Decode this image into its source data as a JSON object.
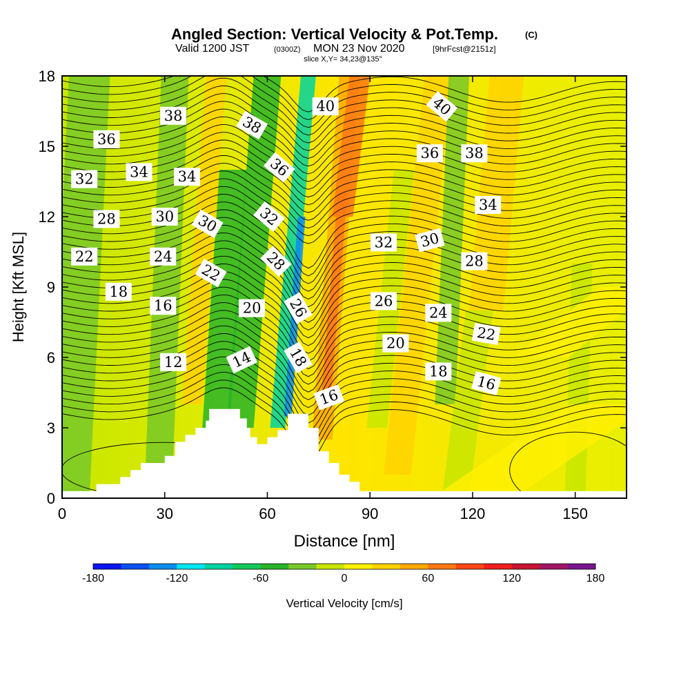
{
  "chart_data": {
    "type": "heatmap",
    "title": "Angled Section: Vertical Velocity & Pot.Temp.",
    "title_mark": "(C)",
    "subtitle": {
      "prefix": "Valid 1200 JST",
      "utc": "(0300Z)",
      "date": "MON 23 Nov 2020",
      "forecast": "[9hrFcst@2151z]"
    },
    "slice_note": "slice X,Y= 34,23@135°",
    "xlabel": "Distance [nm]",
    "ylabel": "Height [Kft MSL]",
    "xlim": [
      0,
      165
    ],
    "ylim": [
      0,
      18
    ],
    "x_ticks": [
      {
        "value": 0,
        "label": "0"
      },
      {
        "value": 30,
        "label": "30"
      },
      {
        "value": 60,
        "label": "60"
      },
      {
        "value": 90,
        "label": "90"
      },
      {
        "value": 120,
        "label": "120"
      },
      {
        "value": 150,
        "label": "150"
      }
    ],
    "y_ticks": [
      {
        "value": 0,
        "label": "0"
      },
      {
        "value": 3,
        "label": "3"
      },
      {
        "value": 6,
        "label": "6"
      },
      {
        "value": 9,
        "label": "9"
      },
      {
        "value": 12,
        "label": "12"
      },
      {
        "value": 15,
        "label": "15"
      },
      {
        "value": 18,
        "label": "18"
      }
    ],
    "colorbar": {
      "label": "Vertical Velocity [cm/s]",
      "range": [
        -180,
        180
      ],
      "step": 20,
      "colors": [
        "#0a14f0",
        "#0a50f0",
        "#0a8cf0",
        "#00e6f0",
        "#00d2a0",
        "#14c85a",
        "#28b428",
        "#78c828",
        "#c8e600",
        "#fff000",
        "#ffd200",
        "#ffaa00",
        "#ff7814",
        "#ff4614",
        "#f01e1e",
        "#c81432",
        "#a01464",
        "#78148c"
      ],
      "ticks": [
        {
          "value": -180,
          "label": "-180"
        },
        {
          "value": -120,
          "label": "-120"
        },
        {
          "value": -60,
          "label": "-60"
        },
        {
          "value": 0,
          "label": "0"
        },
        {
          "value": 60,
          "label": "60"
        },
        {
          "value": 120,
          "label": "120"
        },
        {
          "value": 180,
          "label": "180"
        }
      ]
    },
    "terrain_top_kft": [
      [
        0,
        0.3
      ],
      [
        10,
        0.6
      ],
      [
        17,
        0.9
      ],
      [
        20,
        1.2
      ],
      [
        23,
        1.5
      ],
      [
        30,
        1.8
      ],
      [
        33,
        2.4
      ],
      [
        36,
        2.7
      ],
      [
        39,
        3.0
      ],
      [
        42,
        3.3
      ],
      [
        43,
        3.8
      ],
      [
        52,
        3.4
      ],
      [
        54,
        3.0
      ],
      [
        55,
        2.6
      ],
      [
        57,
        2.3
      ],
      [
        60,
        2.6
      ],
      [
        63,
        2.9
      ],
      [
        66,
        3.6
      ],
      [
        72,
        3.0
      ],
      [
        75,
        2.0
      ],
      [
        78,
        1.5
      ],
      [
        81,
        1.0
      ],
      [
        84,
        0.7
      ],
      [
        87,
        0.3
      ],
      [
        165,
        0.3
      ]
    ],
    "theta_contour_labels": [
      {
        "text": "38",
        "x": 32.5,
        "y": 16.3,
        "angle": 0
      },
      {
        "text": "36",
        "x": 13,
        "y": 15.3,
        "angle": 0
      },
      {
        "text": "32",
        "x": 6.5,
        "y": 13.6,
        "angle": 0
      },
      {
        "text": "34",
        "x": 22.5,
        "y": 13.9,
        "angle": 0
      },
      {
        "text": "34",
        "x": 36.5,
        "y": 13.7,
        "angle": 0
      },
      {
        "text": "28",
        "x": 13,
        "y": 11.9,
        "angle": 0
      },
      {
        "text": "30",
        "x": 30,
        "y": 12.0,
        "angle": 0
      },
      {
        "text": "30",
        "x": 42.5,
        "y": 11.7,
        "angle": 30
      },
      {
        "text": "22",
        "x": 6.5,
        "y": 10.3,
        "angle": 0
      },
      {
        "text": "24",
        "x": 29.5,
        "y": 10.3,
        "angle": 0
      },
      {
        "text": "22",
        "x": 43.5,
        "y": 9.6,
        "angle": 30
      },
      {
        "text": "18",
        "x": 16.5,
        "y": 8.8,
        "angle": 0
      },
      {
        "text": "16",
        "x": 29.5,
        "y": 8.2,
        "angle": 0
      },
      {
        "text": "12",
        "x": 32.5,
        "y": 5.8,
        "angle": 0
      },
      {
        "text": "14",
        "x": 52.5,
        "y": 5.9,
        "angle": -25
      },
      {
        "text": "20",
        "x": 55.5,
        "y": 8.1,
        "angle": 0
      },
      {
        "text": "38",
        "x": 55.5,
        "y": 15.9,
        "angle": 30
      },
      {
        "text": "36",
        "x": 63.5,
        "y": 14.1,
        "angle": 40
      },
      {
        "text": "32",
        "x": 60.5,
        "y": 12.0,
        "angle": 40
      },
      {
        "text": "28",
        "x": 62.5,
        "y": 10.1,
        "angle": 45
      },
      {
        "text": "26",
        "x": 69,
        "y": 8.1,
        "angle": 60
      },
      {
        "text": "18",
        "x": 69,
        "y": 6.0,
        "angle": 60
      },
      {
        "text": "16",
        "x": 78,
        "y": 4.3,
        "angle": -20
      },
      {
        "text": "40",
        "x": 77,
        "y": 16.7,
        "angle": 0
      },
      {
        "text": "40",
        "x": 111,
        "y": 16.7,
        "angle": 40
      },
      {
        "text": "36",
        "x": 107.5,
        "y": 14.7,
        "angle": 0
      },
      {
        "text": "38",
        "x": 120.5,
        "y": 14.7,
        "angle": 0
      },
      {
        "text": "34",
        "x": 124.5,
        "y": 12.5,
        "angle": 0
      },
      {
        "text": "32",
        "x": 94,
        "y": 10.9,
        "angle": 0
      },
      {
        "text": "30",
        "x": 107.5,
        "y": 11.0,
        "angle": -15
      },
      {
        "text": "28",
        "x": 120.5,
        "y": 10.1,
        "angle": 0
      },
      {
        "text": "26",
        "x": 94,
        "y": 8.4,
        "angle": 0
      },
      {
        "text": "24",
        "x": 110,
        "y": 7.9,
        "angle": 0
      },
      {
        "text": "20",
        "x": 97.5,
        "y": 6.6,
        "angle": 0
      },
      {
        "text": "22",
        "x": 124,
        "y": 7.0,
        "angle": 10
      },
      {
        "text": "18",
        "x": 110,
        "y": 5.4,
        "angle": 0
      },
      {
        "text": "16",
        "x": 124,
        "y": 4.9,
        "angle": 15
      }
    ]
  }
}
